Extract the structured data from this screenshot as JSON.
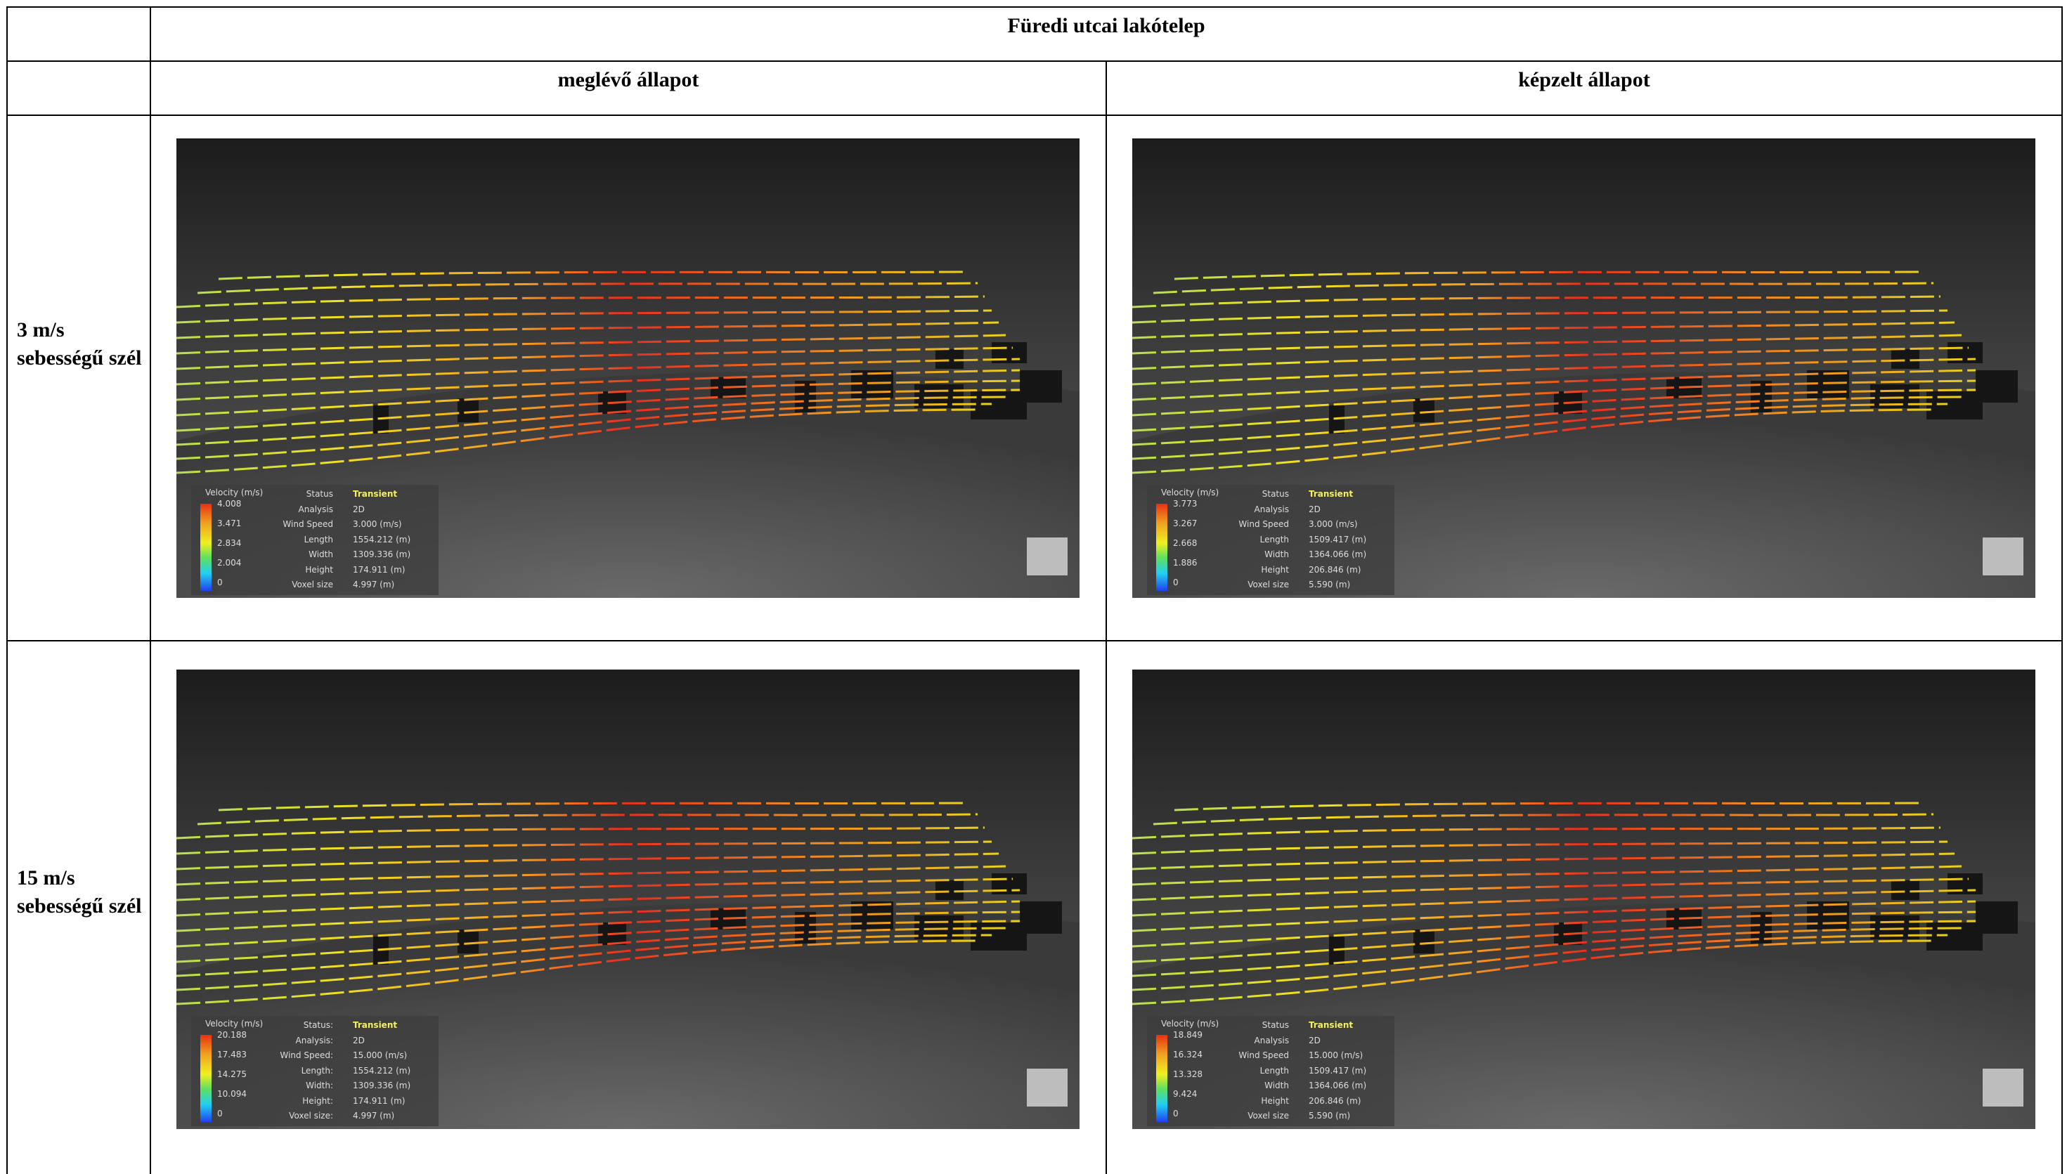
{
  "table": {
    "title": "Füredi utcai lakótelep",
    "columns": [
      "meglévő állapot",
      "képzelt állapot"
    ],
    "rows": [
      {
        "label": "3 m/s sebességű szél",
        "panels": [
          {
            "legend_title": "Velocity (m/s)",
            "scale": [
              "4.008",
              "3.471",
              "2.834",
              "2.004",
              "0"
            ],
            "properties": [
              [
                "Status",
                "Transient"
              ],
              [
                "Analysis",
                "2D"
              ],
              [
                "Wind Speed",
                "3.000 (m/s)"
              ],
              [
                "Length",
                "1554.212 (m)"
              ],
              [
                "Width",
                "1309.336 (m)"
              ],
              [
                "Height",
                "174.911 (m)"
              ],
              [
                "Voxel size",
                "4.997 (m)"
              ]
            ]
          },
          {
            "legend_title": "Velocity (m/s)",
            "scale": [
              "3.773",
              "3.267",
              "2.668",
              "1.886",
              "0"
            ],
            "properties": [
              [
                "Status",
                "Transient"
              ],
              [
                "Analysis",
                "2D"
              ],
              [
                "Wind Speed",
                "3.000 (m/s)"
              ],
              [
                "Length",
                "1509.417 (m)"
              ],
              [
                "Width",
                "1364.066 (m)"
              ],
              [
                "Height",
                "206.846 (m)"
              ],
              [
                "Voxel size",
                "5.590 (m)"
              ]
            ]
          }
        ]
      },
      {
        "label": "15 m/s sebességű szél",
        "panels": [
          {
            "legend_title": "Velocity (m/s)",
            "scale": [
              "20.188",
              "17.483",
              "14.275",
              "10.094",
              "0"
            ],
            "properties": [
              [
                "Status:",
                "Transient"
              ],
              [
                "Analysis:",
                "2D"
              ],
              [
                "Wind Speed:",
                "15.000 (m/s)"
              ],
              [
                "Length:",
                "1554.212 (m)"
              ],
              [
                "Width:",
                "1309.336 (m)"
              ],
              [
                "Height:",
                "174.911 (m)"
              ],
              [
                "Voxel size:",
                "4.997 (m)"
              ]
            ]
          },
          {
            "legend_title": "Velocity (m/s)",
            "scale": [
              "18.849",
              "16.324",
              "13.328",
              "9.424",
              "0"
            ],
            "properties": [
              [
                "Status",
                "Transient"
              ],
              [
                "Analysis",
                "2D"
              ],
              [
                "Wind Speed",
                "15.000 (m/s)"
              ],
              [
                "Length",
                "1509.417 (m)"
              ],
              [
                "Width",
                "1364.066 (m)"
              ],
              [
                "Height",
                "206.846 (m)"
              ],
              [
                "Voxel size",
                "5.590 (m)"
              ]
            ]
          }
        ]
      }
    ]
  }
}
